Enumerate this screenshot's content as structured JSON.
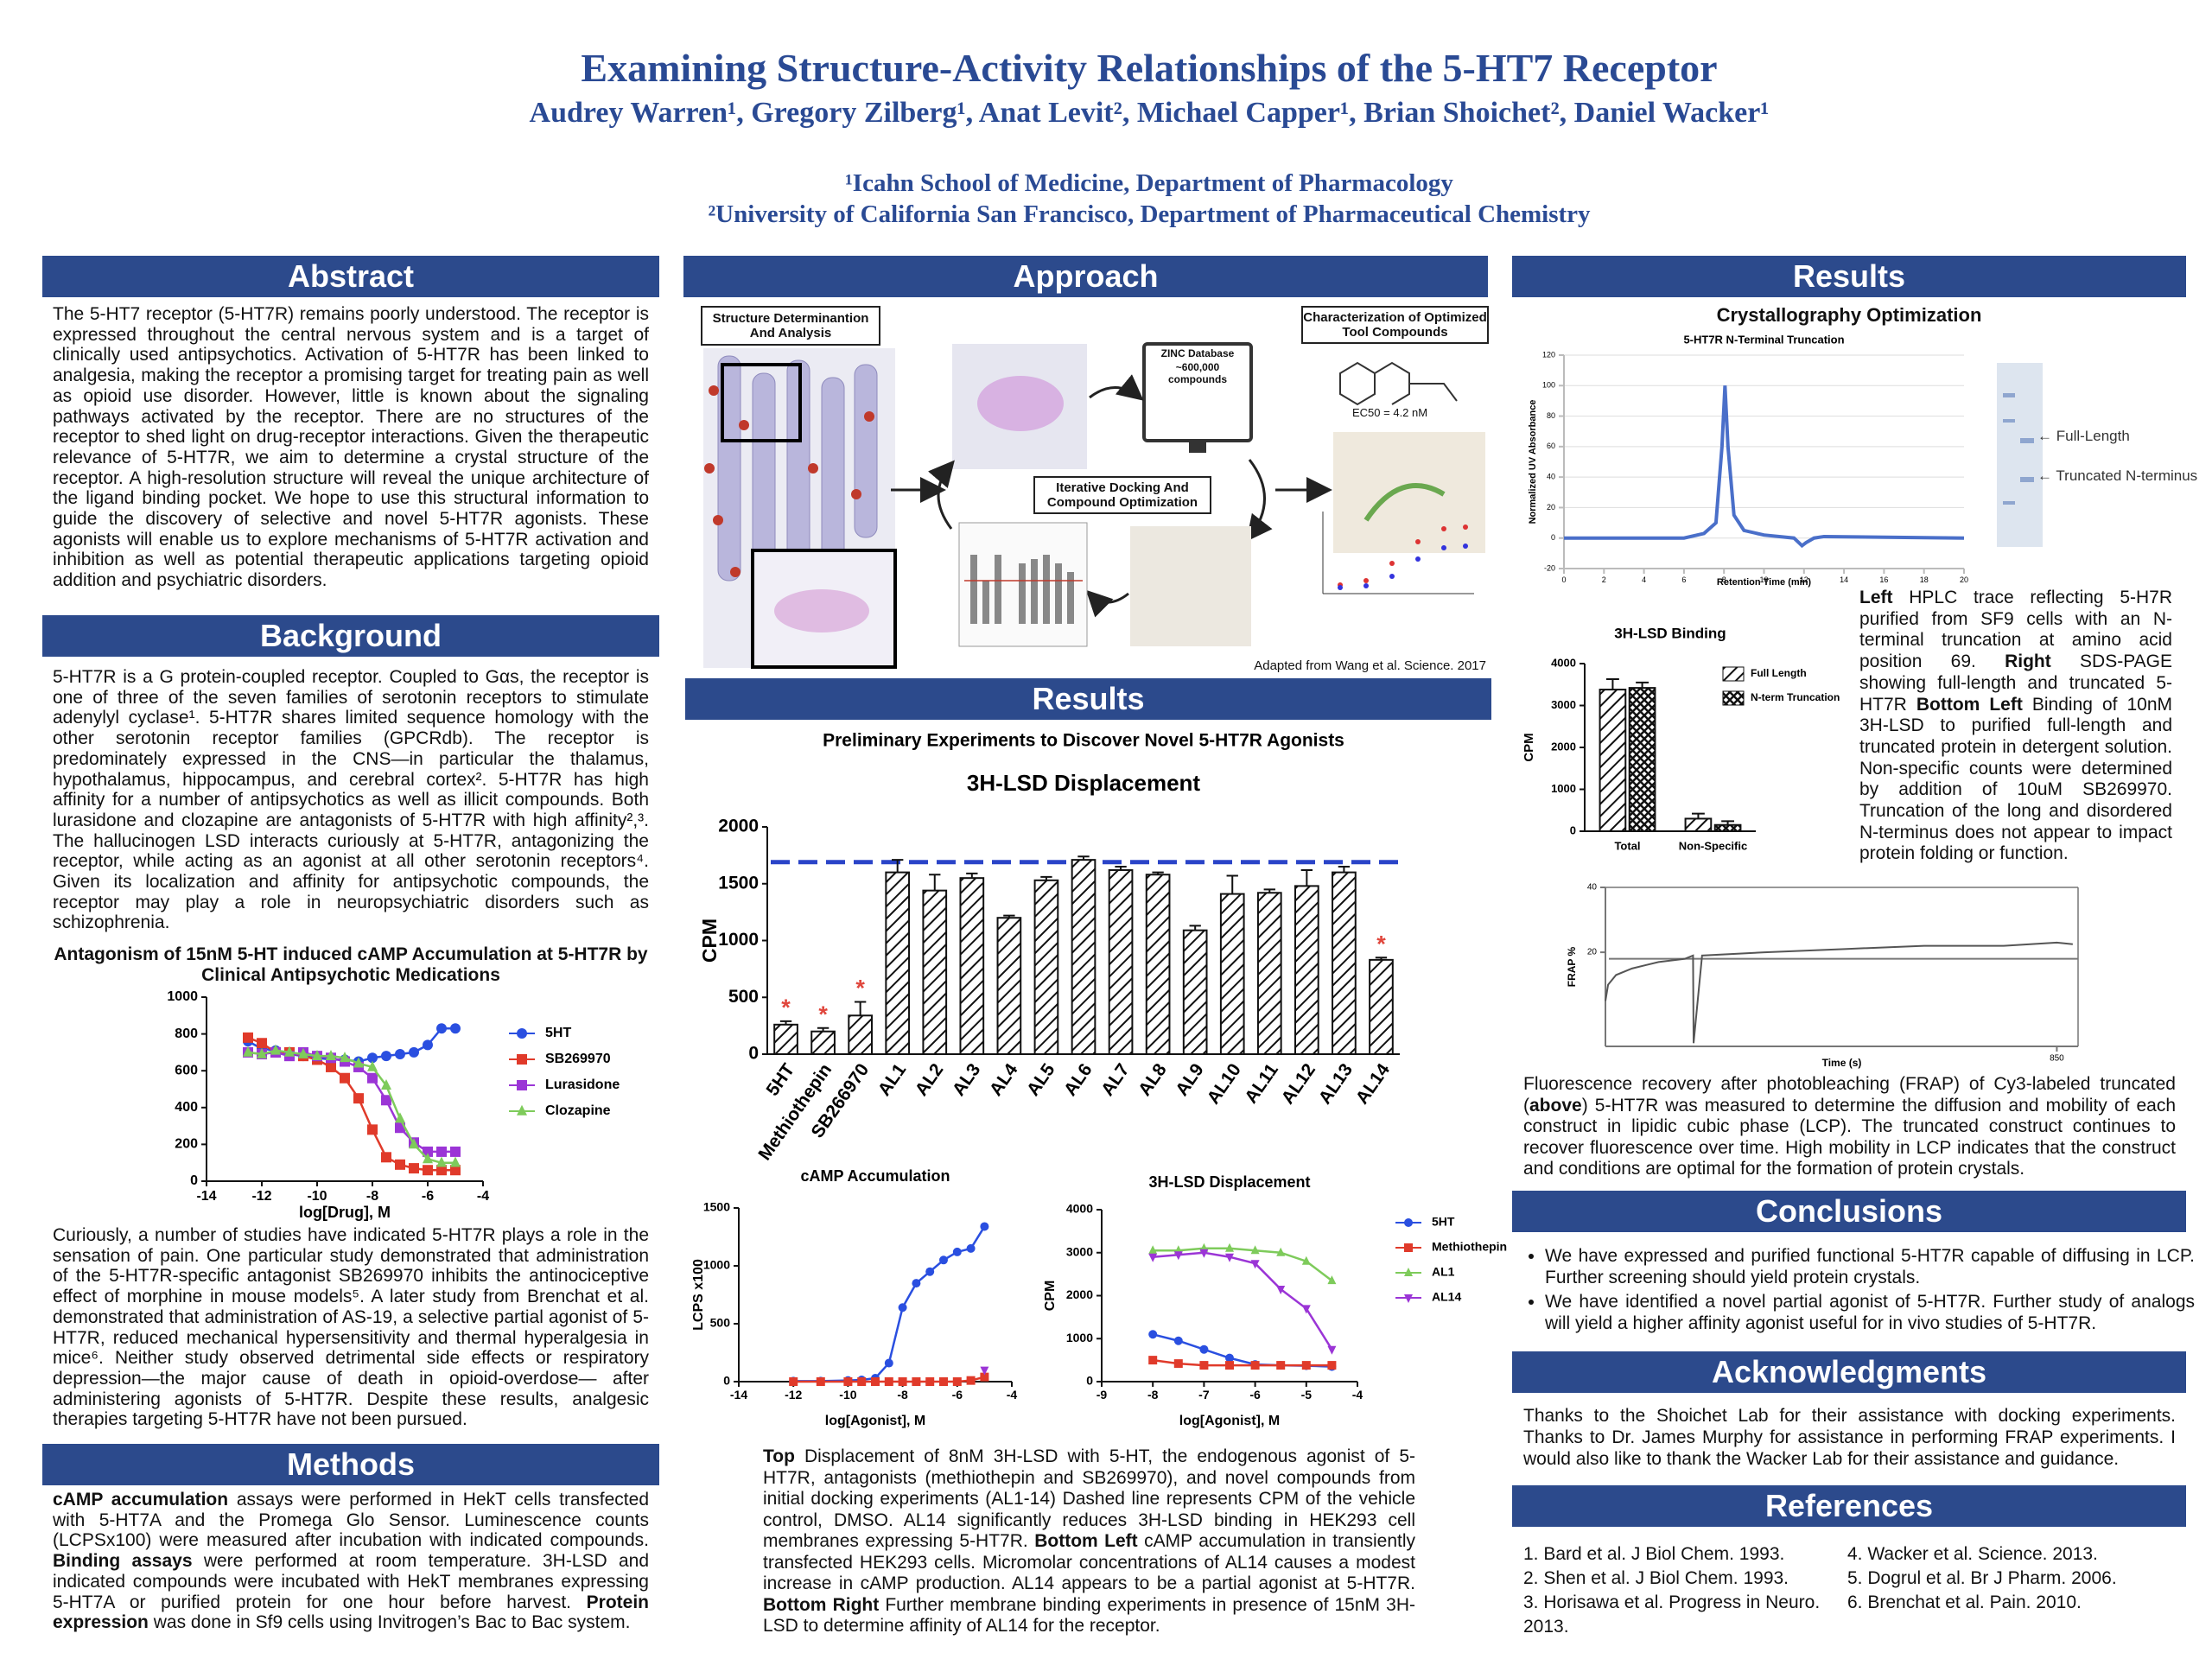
{
  "header": {
    "title": "Examining Structure-Activity Relationships of the 5-HT7 Receptor",
    "authors": "Audrey Warren¹, Gregory Zilberg¹, Anat Levit², Michael Capper¹, Brian Shoichet², Daniel Wacker¹",
    "affiliations": [
      "¹Icahn School of Medicine, Department of Pharmacology",
      "²University of California San Francisco, Department of Pharmaceutical Chemistry"
    ]
  },
  "abstract": {
    "heading": "Abstract",
    "text": "The 5-HT7 receptor (5-HT7R) remains poorly understood. The receptor is expressed throughout the central nervous system and is a target of clinically used antipsychotics. Activation of 5-HT7R has been linked to analgesia, making the receptor a promising target for treating pain as well as opioid use disorder. However, little is known about the signaling pathways activated by the receptor. There are no structures of the receptor to shed light on drug-receptor interactions. Given the therapeutic relevance of 5-HT7R, we aim to determine a crystal structure of the receptor. A high-resolution structure will reveal the unique architecture of the ligand binding pocket. We hope to use this structural information to guide the discovery of selective and novel 5-HT7R agonists. These agonists will enable us to explore mechanisms of 5-HT7R activation and inhibition as well as potential therapeutic applications targeting opioid addition and psychiatric disorders."
  },
  "background": {
    "heading": "Background",
    "paragraphs": [
      "5-HT7R is a G protein-coupled receptor. Coupled to Gαs, the receptor is one of three of the seven families of serotonin receptors to stimulate adenylyl cyclase¹. 5-HT7R shares limited sequence homology with the other serotonin receptor families (GPCRdb). The receptor is predominately expressed in the CNS—in particular the thalamus, hypothalamus, hippocampus, and cerebral cortex². 5-HT7R has high affinity for a number of antipsychotics as well as illicit compounds. Both lurasidone and clozapine are antagonists of 5-HT7R with high affinity²,³. The hallucinogen LSD interacts curiously at 5-HT7R, antagonizing the receptor, while acting as an agonist at all other serotonin receptors⁴. Given its localization and affinity for antipsychotic compounds, the receptor may play a role in neuropsychiatric disorders such as schizophrenia.",
      "Curiously, a number of studies have indicated 5-HT7R plays a role in the sensation of pain. One particular study demonstrated that administration of the 5-HT7R-specific antagonist SB269970 inhibits the antinociceptive effect of morphine in mouse models⁵. A later study from Brenchat et al. demonstrated that administration of AS-19, a selective partial agonist of 5-HT7R, reduced mechanical hypersensitivity and thermal hyperalgesia in mice⁶. Neither study observed detrimental side effects or respiratory depression—the major cause of death in opioid-overdose— after administering agonists of 5-HT7R. Despite these results, analgesic therapies targeting 5-HT7R have not been pursued."
    ]
  },
  "methods": {
    "heading": "Methods",
    "runs": [
      "cAMP accumulation",
      " assays were performed in HekT cells transfected with 5-HT7A and the Promega Glo Sensor. Luminescence counts (LCPSx100) were measured after incubation with indicated compounds. ",
      "Binding assays",
      " were performed at room temperature. 3H-LSD and indicated compounds were incubated with HekT membranes expressing 5-HT7A or purified protein for one hour before harvest. ",
      "Protein expression",
      " was done in Sf9 cells using Invitrogen’s Bac to Bac system."
    ]
  },
  "approach": {
    "heading": "Approach",
    "structure_label": "Structure Determinantion And Analysis",
    "characterization_label": "Characterization of Optimized Tool Compounds",
    "zinc_label": [
      "ZINC Database",
      "~600,000 compounds"
    ],
    "docking_label": "Iterative Docking And Compound Optimization",
    "ec50_label": "EC50 = 4.2 nM",
    "credit": "Adapted from Wang et al. Science. 2017"
  },
  "results_middle": {
    "heading": "Results",
    "caption": [
      "Top",
      " Displacement of 8nM 3H-LSD with 5-HT, the endogenous agonist of 5-HT7R, antagonists (methiothepin and SB269970), and novel compounds from initial docking experiments (AL1-14) Dashed line represents CPM of the vehicle control, DMSO. AL14 significantly reduces 3H-LSD binding in HEK293 cell membranes expressing 5-HT7R. ",
      "Bottom Left",
      " cAMP accumulation in transiently transfected HEK293 cells. Micromolar concentrations of AL14 causes a modest increase in cAMP production. AL14 appears to be a partial agonist at 5-HT7R. ",
      "Bottom Right",
      " Further membrane binding experiments in presence of 15nM 3H-LSD to determine affinity of AL14 for the receptor."
    ]
  },
  "results_right": {
    "heading": "Results",
    "subtitle": "Crystallography Optimization",
    "gel_labels": [
      "Full-Length",
      "Truncated N-terminus"
    ],
    "caption": [
      "Left",
      " HPLC trace reflecting 5-H7R purified from SF9 cells with an N-terminal truncation at amino acid position 69. ",
      "Right",
      " SDS-PAGE showing full-length and truncated 5-HT7R ",
      "Bottom Left",
      " Binding of 10nM 3H-LSD to purified full-length and truncated protein in detergent solution. Non-specific counts were determined by addition of 10uM SB269970. Truncation of the long and disordered N-terminus does not appear to impact protein folding or function."
    ],
    "frap_caption": [
      "Fluorescence recovery after photobleaching (FRAP) of Cy3-labeled truncated (",
      "above",
      ") 5-HT7R was measured to determine the diffusion and mobility of each construct in lipidic cubic phase (LCP). The truncated construct continues to recover fluorescence over time. High mobility in LCP indicates that the construct and conditions are optimal for the formation of protein crystals."
    ]
  },
  "conclusions": {
    "heading": "Conclusions",
    "bullets": [
      "We have expressed and purified functional 5-HT7R capable of diffusing in LCP. Further screening should yield protein crystals.",
      "We have identified a novel partial agonist of 5-HT7R. Further study of analogs will yield a higher affinity agonist useful for in vivo studies of 5-HT7R."
    ]
  },
  "acknowledgments": {
    "heading": "Acknowledgments",
    "text": "Thanks to the Shoichet Lab for their assistance with docking experiments. Thanks to Dr. James Murphy for assistance in performing FRAP experiments. I would also like to thank the Wacker Lab for their assistance and guidance."
  },
  "references": {
    "heading": "References",
    "items": [
      "1. Bard et al. J Biol Chem. 1993.",
      "2. Shen et al. J Biol Chem. 1993.",
      "3. Horisawa et al. Progress in Neuro. 2013.",
      "4. Wacker et al. Science. 2013.",
      "5. Dogrul et al. Br J Pharm. 2006.",
      "6. Brenchat et al. Pain. 2010."
    ]
  },
  "chart_data": [
    {
      "type": "line",
      "title": "Antagonism of 15nM 5-HT induced cAMP Accumulation at 5-HT7R by Clinical Antipsychotic Medications",
      "x_label": "log[Drug], M",
      "xlim": [
        -14,
        -4
      ],
      "xticks": [
        -14,
        -12,
        -10,
        -8,
        -6,
        -4
      ],
      "ylim": [
        0,
        1000
      ],
      "yticks": [
        0,
        200,
        400,
        600,
        800,
        1000
      ],
      "legend": "right",
      "x": [
        -12.5,
        -12,
        -11.5,
        -11,
        -10.5,
        -10,
        -9.5,
        -9,
        -8.5,
        -8,
        -7.5,
        -7,
        -6.5,
        -6,
        -5.5,
        -5
      ],
      "series": [
        {
          "name": "5HT",
          "color": "#2a4fe0",
          "marker": "circle",
          "values": [
            760,
            720,
            710,
            690,
            680,
            670,
            660,
            660,
            650,
            670,
            680,
            690,
            700,
            740,
            830,
            830
          ]
        },
        {
          "name": "SB269970",
          "color": "#e03a2a",
          "marker": "square",
          "values": [
            780,
            750,
            700,
            700,
            680,
            660,
            620,
            560,
            450,
            280,
            130,
            90,
            70,
            60,
            60,
            60
          ]
        },
        {
          "name": "Lurasidone",
          "color": "#9b35d6",
          "marker": "square",
          "values": [
            700,
            690,
            700,
            680,
            700,
            680,
            670,
            650,
            620,
            560,
            440,
            290,
            210,
            160,
            160,
            160
          ]
        },
        {
          "name": "Clozapine",
          "color": "#7ecb5b",
          "marker": "triangle",
          "values": [
            700,
            690,
            710,
            700,
            690,
            680,
            680,
            670,
            640,
            620,
            520,
            340,
            200,
            120,
            100,
            100
          ]
        }
      ]
    },
    {
      "type": "bar",
      "subtitle": "Preliminary Experiments to Discover Novel 5-HT7R Agonists",
      "title": "3H-LSD Displacement",
      "y_label": "CPM",
      "ylim": [
        0,
        2000
      ],
      "yticks": [
        0,
        500,
        1000,
        1500,
        2000
      ],
      "categories": [
        "5HT",
        "Methiothepin",
        "SB266970",
        "AL1",
        "AL2",
        "AL3",
        "AL4",
        "AL5",
        "AL6",
        "AL7",
        "AL8",
        "AL9",
        "AL10",
        "AL11",
        "AL12",
        "AL13",
        "AL14"
      ],
      "values": [
        260,
        200,
        340,
        1600,
        1440,
        1550,
        1200,
        1530,
        1710,
        1620,
        1580,
        1090,
        1410,
        1420,
        1480,
        1600,
        830
      ],
      "errors": [
        30,
        30,
        120,
        110,
        140,
        40,
        20,
        30,
        30,
        30,
        20,
        40,
        160,
        30,
        140,
        50,
        20
      ],
      "reference_line": 1690,
      "reference_color": "#2a44c8",
      "reference_dash": true,
      "annotations": [
        {
          "text": "*",
          "category": "5HT"
        },
        {
          "text": "*",
          "category": "Methiothepin"
        },
        {
          "text": "*",
          "category": "SB266970"
        },
        {
          "text": "*",
          "category": "AL14"
        }
      ],
      "annotation_color": "#e0463c"
    },
    {
      "type": "line",
      "title": "cAMP Accumulation",
      "x_label": "log[Agonist], M",
      "y_label": "LCPS x100",
      "xlim": [
        -14,
        -4
      ],
      "xticks": [
        -14,
        -12,
        -10,
        -8,
        -6,
        -4
      ],
      "ylim": [
        0,
        1500
      ],
      "yticks": [
        0,
        500,
        1000,
        1500
      ],
      "series": [
        {
          "color": "#2a4fe0",
          "marker": "circle",
          "x": [
            -12,
            -11,
            -10,
            -9.5,
            -9,
            -8.5,
            -8,
            -7.5,
            -7,
            -6.5,
            -6,
            -5.5,
            -5
          ],
          "values": [
            5,
            5,
            10,
            15,
            30,
            160,
            640,
            850,
            950,
            1050,
            1120,
            1150,
            1340
          ]
        },
        {
          "color": "#e03a2a",
          "marker": "square",
          "x": [
            -12,
            -11,
            -10,
            -9.5,
            -9,
            -8.5,
            -8,
            -7.5,
            -7,
            -6.5,
            -6,
            -5.5,
            -5
          ],
          "values": [
            0,
            0,
            0,
            0,
            0,
            0,
            0,
            0,
            0,
            0,
            0,
            10,
            40
          ]
        },
        {
          "color": "#9b35d6",
          "marker": "triangle-down",
          "x": [
            -5
          ],
          "values": [
            100
          ]
        }
      ]
    },
    {
      "type": "line",
      "title": "3H-LSD Displacement",
      "x_label": "log[Agonist], M",
      "y_label": "CPM",
      "xlim": [
        -9,
        -4
      ],
      "xticks": [
        -9,
        -8,
        -7,
        -6,
        -5,
        -4
      ],
      "ylim": [
        0,
        4000
      ],
      "yticks": [
        0,
        1000,
        2000,
        3000,
        4000
      ],
      "legend": "right",
      "x": [
        -8,
        -7.5,
        -7,
        -6.5,
        -6,
        -5.5,
        -5,
        -4.5
      ],
      "series": [
        {
          "name": "5HT",
          "color": "#2a4fe0",
          "marker": "circle",
          "values": [
            1100,
            950,
            750,
            550,
            400,
            380,
            370,
            350
          ]
        },
        {
          "name": "Methiothepin",
          "color": "#e03a2a",
          "marker": "square",
          "values": [
            500,
            420,
            380,
            380,
            380,
            380,
            380,
            380
          ]
        },
        {
          "name": "AL1",
          "color": "#7ecb5b",
          "marker": "triangle",
          "values": [
            3050,
            3050,
            3100,
            3100,
            3050,
            3000,
            2800,
            2350
          ]
        },
        {
          "name": "AL14",
          "color": "#9b35d6",
          "marker": "triangle-down",
          "values": [
            2900,
            2950,
            3000,
            2900,
            2750,
            2150,
            1700,
            750
          ]
        }
      ]
    },
    {
      "type": "line",
      "title": "5-HT7R N-Terminal Truncation",
      "x_label": "Retention Time (min)",
      "y_label": "Normalized UV Absorbance",
      "xlim": [
        0,
        20
      ],
      "xticks": [
        0,
        2,
        4,
        6,
        8,
        10,
        12,
        14,
        16,
        18,
        20
      ],
      "ylim": [
        -20,
        120
      ],
      "yticks": [
        -20,
        0,
        20,
        40,
        60,
        80,
        100,
        120
      ],
      "grid": true,
      "series": [
        {
          "color": "#4a6fc9",
          "x": [
            0,
            4,
            6,
            7,
            7.6,
            7.9,
            8.05,
            8.2,
            8.5,
            9,
            10,
            11.5,
            11.9,
            12.1,
            12.5,
            13,
            20
          ],
          "values": [
            0,
            0,
            0,
            3,
            10,
            60,
            100,
            60,
            15,
            5,
            2,
            0,
            -5,
            -3,
            0,
            1,
            0
          ]
        }
      ]
    },
    {
      "type": "bar",
      "title": "3H-LSD Binding",
      "y_label": "CPM",
      "ylim": [
        0,
        4000
      ],
      "yticks": [
        0,
        1000,
        2000,
        3000,
        4000
      ],
      "categories": [
        "Total",
        "Non-Specific"
      ],
      "legend": "right",
      "series": [
        {
          "name": "Full Length",
          "pattern": "hatch",
          "values": [
            3380,
            300
          ],
          "errors": [
            250,
            120
          ]
        },
        {
          "name": "N-term Truncation",
          "pattern": "cross",
          "values": [
            3420,
            150
          ],
          "errors": [
            130,
            90
          ]
        }
      ]
    },
    {
      "type": "line",
      "x_label": "Time (s)",
      "y_label": "FRAP %",
      "xlim": [
        0,
        890
      ],
      "xticks": [
        850
      ],
      "ylim": [
        -9,
        40
      ],
      "yticks": [
        20,
        40
      ],
      "frame": true,
      "reference_line": 18,
      "reference_color": "#777",
      "series": [
        {
          "color": "#555",
          "x": [
            0,
            5,
            20,
            50,
            100,
            150,
            165,
            166,
            182,
            300,
            450,
            600,
            750,
            850,
            880
          ],
          "values": [
            5,
            10,
            13,
            15,
            17,
            18,
            19,
            -8,
            19,
            20,
            21,
            22,
            22,
            23,
            22.5
          ]
        }
      ]
    }
  ]
}
